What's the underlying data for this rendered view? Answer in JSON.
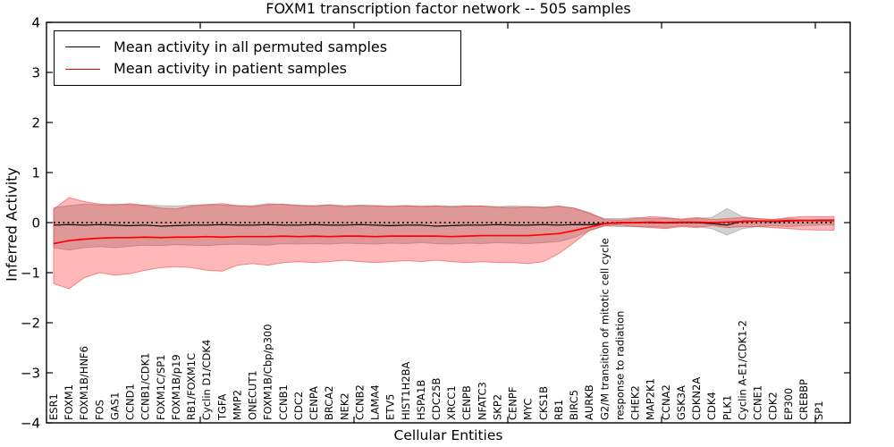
{
  "chart_data": {
    "type": "line",
    "title": "FOXM1 transcription factor network -- 505 samples",
    "xlabel": "Cellular Entities",
    "ylabel": "Inferred Activity",
    "ylim": [
      -4,
      4
    ],
    "yticks": [
      4,
      3,
      2,
      1,
      0,
      -1,
      -2,
      -3,
      -4
    ],
    "ytick_labels": [
      "4",
      "3",
      "2",
      "1",
      "0",
      "−1",
      "−2",
      "−3",
      "−4"
    ],
    "grid": false,
    "legend_position": "upper left",
    "zero_reference_line": 0,
    "categories": [
      "ESR1",
      "FOXM1",
      "FOXM1B/HNF6",
      "FOS",
      "GAS1",
      "CCND1",
      "CCNB1/CDK1",
      "FOXM1C/SP1",
      "FOXM1B/p19",
      "RB1/FOXM1C",
      "Cyclin D1/CDK4",
      "TGFA",
      "MMP2",
      "ONECUT1",
      "FOXM1B/Cbp/p300",
      "CCNB1",
      "CDC2",
      "CENPA",
      "BRCA2",
      "NEK2",
      "CCNB2",
      "LAMA4",
      "ETV5",
      "HIST1H2BA",
      "HSPA1B",
      "CDC25B",
      "XRCC1",
      "CENPB",
      "NFATC3",
      "SKP2",
      "CENPF",
      "MYC",
      "CKS1B",
      "RB1",
      "BIRC5",
      "AURKB",
      "G2/M transition of mitotic cell cycle",
      "response to radiation",
      "CHEK2",
      "MAP2K1",
      "CCNA2",
      "GSK3A",
      "CDKN2A",
      "CDK4",
      "PLK1",
      "Cyclin A-E1/CDK1-2",
      "CCNE1",
      "CDK2",
      "EP300",
      "CREBBP",
      "SP1"
    ],
    "series": [
      {
        "name": "Mean activity in all permuted samples",
        "color": "#000000",
        "values": [
          -0.05,
          -0.04,
          -0.05,
          -0.04,
          -0.05,
          -0.06,
          -0.05,
          -0.07,
          -0.06,
          -0.05,
          -0.05,
          -0.04,
          -0.05,
          -0.05,
          -0.04,
          -0.05,
          -0.05,
          -0.04,
          -0.05,
          -0.05,
          -0.04,
          -0.05,
          -0.06,
          -0.05,
          -0.05,
          -0.07,
          -0.06,
          -0.05,
          -0.05,
          -0.04,
          -0.05,
          -0.05,
          -0.04,
          -0.05,
          -0.04,
          -0.04,
          -0.02,
          -0.01,
          0,
          0,
          -0.01,
          0,
          0,
          -0.02,
          -0.05,
          0.03,
          0.03,
          0.02,
          0.03,
          0.04,
          0.04
        ]
      },
      {
        "name": "Mean activity in patient samples",
        "color": "#ff0000",
        "values": [
          -0.42,
          -0.36,
          -0.33,
          -0.31,
          -0.3,
          -0.3,
          -0.29,
          -0.3,
          -0.29,
          -0.29,
          -0.28,
          -0.29,
          -0.28,
          -0.28,
          -0.28,
          -0.27,
          -0.28,
          -0.27,
          -0.28,
          -0.27,
          -0.27,
          -0.28,
          -0.27,
          -0.27,
          -0.27,
          -0.27,
          -0.28,
          -0.27,
          -0.26,
          -0.26,
          -0.26,
          -0.26,
          -0.24,
          -0.22,
          -0.16,
          -0.09,
          -0.02,
          0,
          0,
          0.01,
          0,
          0.01,
          0.01,
          0,
          0.01,
          0.02,
          0.03,
          0.03,
          0.04,
          0.04,
          0.05
        ]
      }
    ],
    "bands": [
      {
        "name": "permuted samples range",
        "fill": "rgba(128,128,128,0.35)",
        "edge": "rgba(128,128,128,0.45)",
        "upper": [
          0.3,
          0.34,
          0.37,
          0.35,
          0.37,
          0.36,
          0.35,
          0.34,
          0.33,
          0.35,
          0.36,
          0.35,
          0.34,
          0.34,
          0.38,
          0.36,
          0.35,
          0.34,
          0.36,
          0.34,
          0.35,
          0.34,
          0.33,
          0.34,
          0.33,
          0.34,
          0.33,
          0.34,
          0.33,
          0.32,
          0.33,
          0.32,
          0.31,
          0.33,
          0.29,
          0.18,
          0.08,
          0.08,
          0.1,
          0.08,
          0.09,
          0.06,
          0.08,
          0.1,
          0.28,
          0.12,
          0.08,
          0.06,
          0.08,
          0.06,
          0.05
        ],
        "lower": [
          -0.5,
          -0.55,
          -0.5,
          -0.48,
          -0.5,
          -0.47,
          -0.45,
          -0.46,
          -0.44,
          -0.45,
          -0.46,
          -0.44,
          -0.43,
          -0.44,
          -0.45,
          -0.42,
          -0.43,
          -0.42,
          -0.43,
          -0.41,
          -0.42,
          -0.43,
          -0.41,
          -0.42,
          -0.4,
          -0.42,
          -0.43,
          -0.41,
          -0.42,
          -0.4,
          -0.41,
          -0.42,
          -0.4,
          -0.38,
          -0.3,
          -0.16,
          -0.07,
          -0.08,
          -0.08,
          -0.08,
          -0.1,
          -0.06,
          -0.08,
          -0.12,
          -0.25,
          -0.12,
          -0.08,
          -0.06,
          -0.08,
          -0.06,
          -0.05
        ]
      },
      {
        "name": "patient samples range",
        "fill": "rgba(255,0,0,0.28)",
        "edge": "rgba(235,60,60,0.55)",
        "upper": [
          0.27,
          0.5,
          0.42,
          0.37,
          0.35,
          0.38,
          0.34,
          0.29,
          0.28,
          0.33,
          0.36,
          0.38,
          0.34,
          0.32,
          0.36,
          0.37,
          0.34,
          0.33,
          0.35,
          0.32,
          0.34,
          0.34,
          0.32,
          0.34,
          0.32,
          0.33,
          0.31,
          0.33,
          0.33,
          0.31,
          0.3,
          0.32,
          0.3,
          0.33,
          0.29,
          0.2,
          0.06,
          0.05,
          0.08,
          0.12,
          0.1,
          0.07,
          0.1,
          0.06,
          0.08,
          0.1,
          0.08,
          0.06,
          0.1,
          0.12,
          0.12
        ],
        "lower": [
          -1.22,
          -1.32,
          -1.1,
          -1.0,
          -1.05,
          -1.02,
          -0.95,
          -0.9,
          -0.88,
          -0.9,
          -0.95,
          -0.97,
          -0.85,
          -0.82,
          -0.85,
          -0.8,
          -0.78,
          -0.8,
          -0.78,
          -0.75,
          -0.78,
          -0.8,
          -0.78,
          -0.76,
          -0.78,
          -0.75,
          -0.78,
          -0.8,
          -0.78,
          -0.8,
          -0.8,
          -0.82,
          -0.78,
          -0.62,
          -0.4,
          -0.16,
          -0.06,
          -0.05,
          -0.08,
          -0.1,
          -0.12,
          -0.08,
          -0.1,
          -0.06,
          -0.1,
          -0.08,
          -0.08,
          -0.1,
          -0.12,
          -0.14,
          -0.15
        ]
      }
    ]
  },
  "legend": {
    "entries": [
      {
        "label": "Mean activity in all permuted samples",
        "color": "#000000"
      },
      {
        "label": "Mean activity in patient samples",
        "color": "#ff0000"
      }
    ]
  }
}
